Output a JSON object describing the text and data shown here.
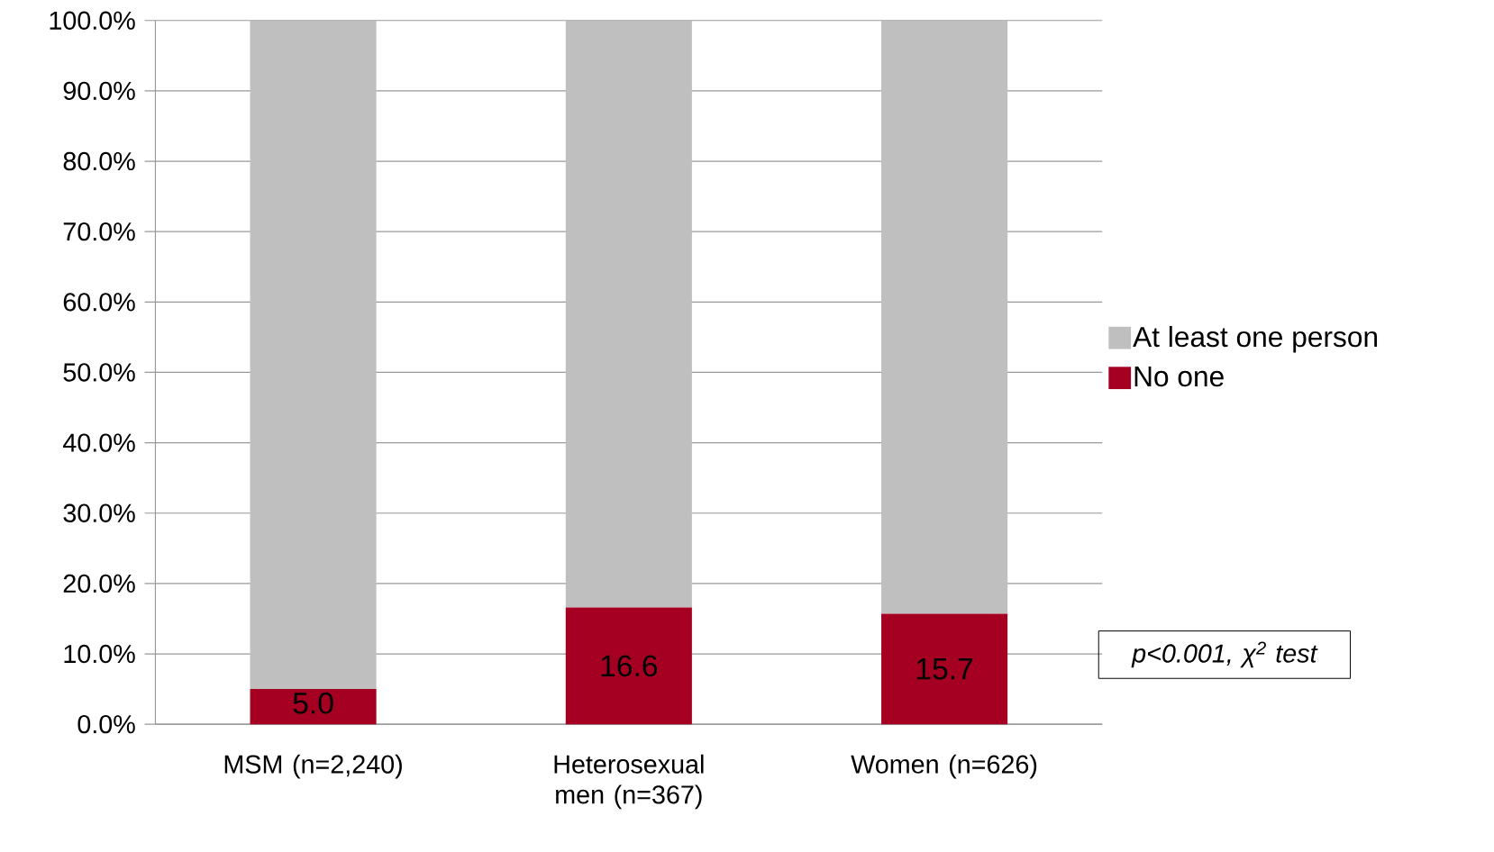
{
  "chart_data": {
    "type": "bar",
    "stacked": true,
    "categories": [
      "MSM (n=2,240)",
      "Heterosexual men (n=367)",
      "Women (n=626)"
    ],
    "series": [
      {
        "name": "No one",
        "color": "#a50021",
        "values": [
          5.0,
          16.6,
          15.7
        ],
        "value_labels": [
          "5.0",
          "16.6",
          "15.7"
        ]
      },
      {
        "name": "At least one person",
        "color": "#bfbfbf",
        "values": [
          95.0,
          83.4,
          84.3
        ]
      }
    ],
    "ylim": [
      0,
      100
    ],
    "yticks": [
      {
        "value": 0,
        "label": "0.0%"
      },
      {
        "value": 10,
        "label": "10.0%"
      },
      {
        "value": 20,
        "label": "20.0%"
      },
      {
        "value": 30,
        "label": "30.0%"
      },
      {
        "value": 40,
        "label": "40.0%"
      },
      {
        "value": 50,
        "label": "50.0%"
      },
      {
        "value": 60,
        "label": "60.0%"
      },
      {
        "value": 70,
        "label": "70.0%"
      },
      {
        "value": 80,
        "label": "80.0%"
      },
      {
        "value": 90,
        "label": "90.0%"
      },
      {
        "value": 100,
        "label": "100.0%"
      }
    ],
    "grid": "y",
    "legend": "right",
    "annotations": [
      "p<0.001, χ$^{2}$ test"
    ]
  }
}
